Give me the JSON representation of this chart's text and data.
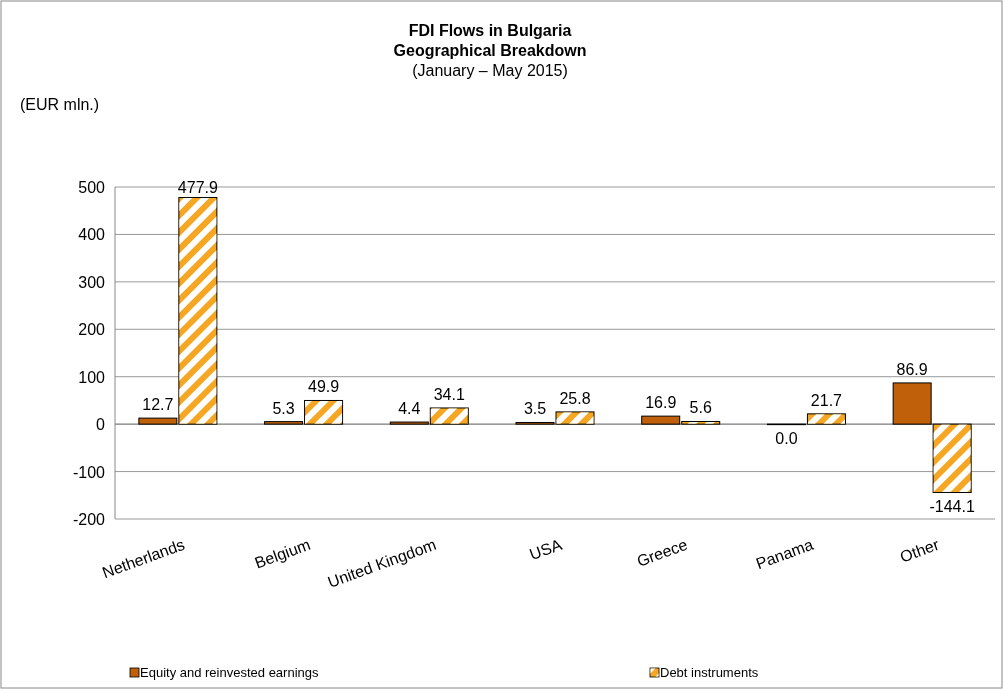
{
  "chart_data": {
    "type": "bar",
    "title": "FDI Flows in Bulgaria",
    "subtitle": "Geographical Breakdown",
    "annotations": [
      "(January – May 2015)"
    ],
    "ylabel": "(EUR mln.)",
    "categories": [
      "Netherlands",
      "Belgium",
      "United Kingdom",
      "USA",
      "Greece",
      "Panama",
      "Other"
    ],
    "series": [
      {
        "name": "Equity and reinvested earnings",
        "color": "#c0600a",
        "values": [
          12.7,
          5.3,
          4.4,
          3.5,
          16.9,
          0.0,
          86.9
        ],
        "value_labels": [
          "12.7",
          "5.3",
          "4.4",
          "3.5",
          "16.9",
          "0.0",
          "86.9"
        ]
      },
      {
        "name": "Debt instruments",
        "color": "#f5a623",
        "values": [
          477.9,
          49.9,
          34.1,
          25.8,
          5.6,
          21.7,
          -144.1
        ],
        "value_labels": [
          "477.9",
          "49.9",
          "34.1",
          "25.8",
          "5.6",
          "21.7",
          "-144.1"
        ]
      }
    ],
    "ylim": [
      -200,
      500
    ],
    "yticks": [
      -200,
      -100,
      0,
      100,
      200,
      300,
      400,
      500
    ],
    "grid": "y",
    "legend": "bottom"
  }
}
